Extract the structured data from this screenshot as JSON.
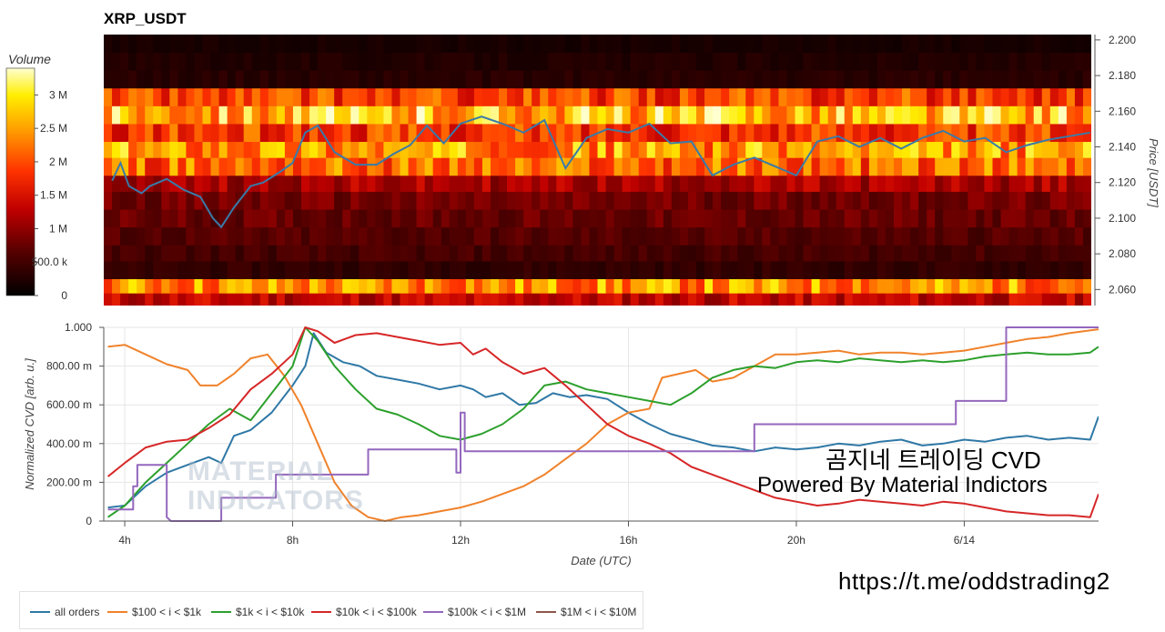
{
  "chart_data": [
    {
      "type": "heatmap",
      "title": "XRP_USDT",
      "colorbar": {
        "title": "Volume",
        "ticks": [
          "0",
          "500.0 k",
          "1 M",
          "1.5 M",
          "2 M",
          "2.5 M",
          "3 M"
        ],
        "range": [
          0,
          3400000
        ]
      },
      "yaxis": {
        "label": "Price [USDT]",
        "ticks": [
          "2.060",
          "2.080",
          "2.100",
          "2.120",
          "2.140",
          "2.160",
          "2.180",
          "2.200"
        ],
        "range": [
          2.051,
          2.203
        ]
      },
      "bins": [
        {
          "low": 2.051,
          "high": 2.058,
          "volume": 1300000
        },
        {
          "low": 2.058,
          "high": 2.066,
          "volume": 2400000
        },
        {
          "low": 2.066,
          "high": 2.076,
          "volume": 380000
        },
        {
          "low": 2.076,
          "high": 2.085,
          "volume": 520000
        },
        {
          "low": 2.085,
          "high": 2.095,
          "volume": 620000
        },
        {
          "low": 2.095,
          "high": 2.105,
          "volume": 750000
        },
        {
          "low": 2.105,
          "high": 2.115,
          "volume": 820000
        },
        {
          "low": 2.115,
          "high": 2.124,
          "volume": 1150000
        },
        {
          "low": 2.124,
          "high": 2.134,
          "volume": 2150000
        },
        {
          "low": 2.134,
          "high": 2.143,
          "volume": 2450000
        },
        {
          "low": 2.143,
          "high": 2.153,
          "volume": 1850000
        },
        {
          "low": 2.153,
          "high": 2.163,
          "volume": 2700000
        },
        {
          "low": 2.163,
          "high": 2.173,
          "volume": 1900000
        },
        {
          "low": 2.173,
          "high": 2.183,
          "volume": 300000
        },
        {
          "low": 2.183,
          "high": 2.193,
          "volume": 250000
        },
        {
          "low": 2.193,
          "high": 2.203,
          "volume": 180000
        }
      ],
      "price_series": {
        "color": "#3a7aa8",
        "t": [
          3.7,
          3.9,
          4.1,
          4.4,
          4.6,
          5.0,
          5.4,
          5.8,
          6.1,
          6.3,
          6.6,
          7.0,
          7.3,
          7.7,
          8.0,
          8.3,
          8.6,
          9.0,
          9.5,
          10.0,
          10.4,
          10.8,
          11.2,
          11.6,
          12.0,
          12.5,
          13.0,
          13.5,
          14.0,
          14.5,
          15.0,
          15.5,
          16.0,
          16.5,
          17.0,
          17.5,
          18.0,
          18.5,
          19.0,
          19.5,
          20.0,
          20.5,
          21.0,
          21.5,
          22.0,
          22.5,
          23.0,
          23.5,
          24.0,
          24.5,
          25.0,
          25.5,
          26.0,
          26.5,
          27.0
        ],
        "price": [
          2.121,
          2.131,
          2.118,
          2.114,
          2.118,
          2.122,
          2.116,
          2.112,
          2.1,
          2.095,
          2.106,
          2.118,
          2.12,
          2.126,
          2.131,
          2.148,
          2.152,
          2.137,
          2.13,
          2.13,
          2.136,
          2.141,
          2.152,
          2.142,
          2.153,
          2.157,
          2.153,
          2.148,
          2.155,
          2.128,
          2.145,
          2.15,
          2.148,
          2.153,
          2.142,
          2.143,
          2.124,
          2.13,
          2.134,
          2.129,
          2.124,
          2.143,
          2.146,
          2.14,
          2.145,
          2.139,
          2.145,
          2.149,
          2.143,
          2.145,
          2.137,
          2.141,
          2.144,
          2.146,
          2.148
        ]
      }
    },
    {
      "type": "line",
      "xlabel": "Date (UTC)",
      "ylabel": "Normalized CVD [arb. u.]",
      "xlim": [
        3.5,
        27.2
      ],
      "ylim": [
        0,
        1
      ],
      "x_ticks": [
        "4h",
        "8h",
        "12h",
        "16h",
        "20h",
        "6/14"
      ],
      "y_ticks": [
        "0",
        "200.00 m",
        "400.00 m",
        "600.00 m",
        "800.00 m",
        "1.000"
      ],
      "series": [
        {
          "name": "all orders",
          "color": "#2f78a6",
          "x": [
            3.6,
            4.0,
            4.5,
            5.0,
            5.5,
            6.0,
            6.3,
            6.6,
            7.0,
            7.5,
            8.0,
            8.3,
            8.5,
            8.8,
            9.2,
            9.6,
            10.0,
            10.5,
            11.0,
            11.5,
            12.0,
            12.3,
            12.6,
            13.0,
            13.4,
            13.8,
            14.2,
            14.6,
            15.0,
            15.5,
            16.0,
            16.5,
            17.0,
            17.5,
            18.0,
            18.5,
            19.0,
            19.5,
            20.0,
            20.5,
            21.0,
            21.5,
            22.0,
            22.5,
            23.0,
            23.5,
            24.0,
            24.5,
            25.0,
            25.5,
            26.0,
            26.5,
            27.0,
            27.2
          ],
          "y": [
            0.07,
            0.08,
            0.18,
            0.25,
            0.29,
            0.33,
            0.3,
            0.44,
            0.47,
            0.56,
            0.7,
            0.8,
            0.97,
            0.87,
            0.82,
            0.8,
            0.75,
            0.73,
            0.71,
            0.68,
            0.7,
            0.68,
            0.64,
            0.66,
            0.6,
            0.61,
            0.66,
            0.64,
            0.65,
            0.63,
            0.56,
            0.5,
            0.45,
            0.42,
            0.39,
            0.38,
            0.36,
            0.38,
            0.37,
            0.38,
            0.4,
            0.39,
            0.41,
            0.42,
            0.39,
            0.4,
            0.42,
            0.41,
            0.43,
            0.44,
            0.42,
            0.43,
            0.42,
            0.54
          ]
        },
        {
          "name": "$100 < i < $1k",
          "color": "#f0822b",
          "x": [
            3.6,
            4.0,
            4.5,
            5.0,
            5.5,
            5.8,
            6.2,
            6.6,
            7.0,
            7.4,
            7.8,
            8.2,
            8.6,
            9.0,
            9.4,
            9.8,
            10.2,
            10.6,
            11.0,
            11.5,
            12.0,
            12.5,
            13.0,
            13.5,
            14.0,
            14.5,
            15.0,
            15.5,
            16.0,
            16.5,
            16.8,
            17.2,
            17.6,
            18.0,
            18.5,
            19.0,
            19.5,
            20.0,
            20.5,
            21.0,
            21.5,
            22.0,
            22.5,
            23.0,
            23.5,
            24.0,
            24.5,
            25.0,
            25.5,
            26.0,
            26.5,
            27.2
          ],
          "y": [
            0.9,
            0.91,
            0.86,
            0.81,
            0.78,
            0.7,
            0.7,
            0.76,
            0.84,
            0.86,
            0.75,
            0.6,
            0.4,
            0.2,
            0.08,
            0.02,
            0.0,
            0.02,
            0.03,
            0.05,
            0.07,
            0.1,
            0.14,
            0.18,
            0.24,
            0.32,
            0.4,
            0.5,
            0.56,
            0.58,
            0.74,
            0.76,
            0.78,
            0.72,
            0.74,
            0.8,
            0.86,
            0.86,
            0.87,
            0.88,
            0.86,
            0.87,
            0.87,
            0.86,
            0.87,
            0.88,
            0.9,
            0.92,
            0.94,
            0.95,
            0.97,
            0.99
          ]
        },
        {
          "name": "$1k < i < $10k",
          "color": "#2ca02c",
          "x": [
            3.6,
            4.0,
            4.5,
            5.0,
            5.5,
            6.0,
            6.5,
            7.0,
            7.5,
            8.0,
            8.3,
            8.6,
            9.0,
            9.5,
            10.0,
            10.5,
            11.0,
            11.5,
            12.0,
            12.5,
            13.0,
            13.5,
            14.0,
            14.5,
            15.0,
            15.5,
            16.0,
            16.5,
            17.0,
            17.5,
            18.0,
            18.5,
            19.0,
            19.5,
            20.0,
            20.5,
            21.0,
            21.5,
            22.0,
            22.5,
            23.0,
            23.5,
            24.0,
            24.5,
            25.0,
            25.5,
            26.0,
            26.5,
            27.0,
            27.2
          ],
          "y": [
            0.02,
            0.08,
            0.2,
            0.3,
            0.4,
            0.5,
            0.58,
            0.52,
            0.66,
            0.8,
            1.0,
            0.93,
            0.8,
            0.68,
            0.58,
            0.55,
            0.5,
            0.44,
            0.42,
            0.45,
            0.5,
            0.58,
            0.7,
            0.72,
            0.68,
            0.66,
            0.64,
            0.62,
            0.6,
            0.66,
            0.74,
            0.78,
            0.8,
            0.79,
            0.82,
            0.83,
            0.82,
            0.84,
            0.83,
            0.82,
            0.83,
            0.82,
            0.83,
            0.85,
            0.86,
            0.87,
            0.86,
            0.86,
            0.87,
            0.9
          ]
        },
        {
          "name": "$10k < i < $100k",
          "color": "#d62728",
          "x": [
            3.6,
            4.0,
            4.5,
            5.0,
            5.5,
            6.0,
            6.5,
            7.0,
            7.5,
            8.0,
            8.3,
            8.6,
            9.0,
            9.5,
            10.0,
            10.5,
            11.0,
            11.5,
            12.0,
            12.3,
            12.6,
            13.0,
            13.5,
            14.0,
            14.5,
            15.0,
            15.5,
            16.0,
            16.5,
            17.0,
            17.5,
            18.0,
            18.5,
            19.0,
            19.5,
            20.0,
            20.5,
            21.0,
            21.5,
            22.0,
            22.5,
            23.0,
            23.5,
            24.0,
            24.5,
            25.0,
            25.5,
            26.0,
            26.5,
            27.0,
            27.2
          ],
          "y": [
            0.23,
            0.3,
            0.38,
            0.41,
            0.42,
            0.48,
            0.55,
            0.68,
            0.76,
            0.86,
            1.0,
            0.98,
            0.92,
            0.96,
            0.97,
            0.95,
            0.93,
            0.91,
            0.92,
            0.86,
            0.89,
            0.82,
            0.76,
            0.79,
            0.7,
            0.6,
            0.5,
            0.44,
            0.4,
            0.35,
            0.28,
            0.24,
            0.2,
            0.16,
            0.12,
            0.1,
            0.08,
            0.09,
            0.11,
            0.1,
            0.09,
            0.08,
            0.1,
            0.09,
            0.07,
            0.05,
            0.04,
            0.03,
            0.03,
            0.02,
            0.14
          ]
        },
        {
          "name": "$100k < i < $1M",
          "color": "#9467bd",
          "x": [
            3.6,
            4.2,
            4.2,
            4.3,
            4.3,
            5.0,
            5.0,
            5.1,
            6.3,
            6.3,
            7.6,
            7.6,
            9.8,
            9.8,
            11.9,
            11.9,
            12.0,
            12.0,
            12.1,
            12.1,
            16.0,
            16.0,
            19.0,
            19.0,
            23.8,
            23.8,
            25.0,
            25.0,
            27.2
          ],
          "y": [
            0.06,
            0.06,
            0.18,
            0.18,
            0.29,
            0.29,
            0.02,
            0.0,
            0.0,
            0.12,
            0.12,
            0.24,
            0.24,
            0.37,
            0.37,
            0.25,
            0.25,
            0.56,
            0.56,
            0.36,
            0.36,
            0.36,
            0.36,
            0.5,
            0.5,
            0.62,
            0.62,
            1.0,
            1.0
          ]
        },
        {
          "name": "$1M < i < $10M",
          "color": "#8c564b",
          "x": [],
          "y": []
        }
      ]
    }
  ],
  "watermark": {
    "line1": "MATERIAL",
    "line2": "INDICATORS"
  },
  "overlay": {
    "title": "곰지네 트레이딩 CVD",
    "subtitle": "Powered By Material Indictors",
    "url": "https://t.me/oddstrading2"
  }
}
